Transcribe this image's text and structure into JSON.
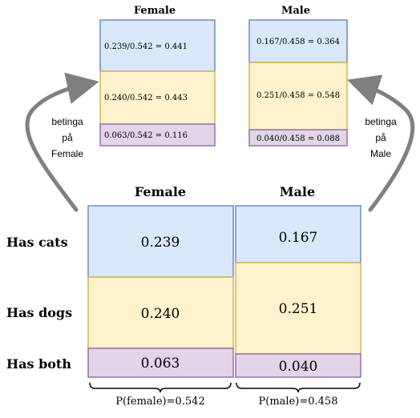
{
  "top": {
    "female": {
      "title": "Female",
      "cells": [
        {
          "label": "0.239/0.542 = 0.441",
          "category": "cats"
        },
        {
          "label": "0.240/0.542 = 0.443",
          "category": "dogs"
        },
        {
          "label": "0.063/0.542 = 0.116",
          "category": "both"
        }
      ]
    },
    "male": {
      "title": "Male",
      "cells": [
        {
          "label": "0.167/0.458 = 0.364",
          "category": "cats"
        },
        {
          "label": "0.251/0.458 = 0.548",
          "category": "dogs"
        },
        {
          "label": "0.040/0.458 = 0.088",
          "category": "both"
        }
      ]
    }
  },
  "arrows": {
    "left_text": [
      "betinga",
      "på",
      "Female"
    ],
    "right_text": [
      "betinga",
      "på",
      "Male"
    ]
  },
  "bottom": {
    "female": {
      "title": "Female",
      "probability_label": "P(female)=0.542",
      "cells": [
        {
          "value": "0.239",
          "category": "cats"
        },
        {
          "value": "0.240",
          "category": "dogs"
        },
        {
          "value": "0.063",
          "category": "both"
        }
      ]
    },
    "male": {
      "title": "Male",
      "probability_label": "P(male)=0.458",
      "cells": [
        {
          "value": "0.167",
          "category": "cats"
        },
        {
          "value": "0.251",
          "category": "dogs"
        },
        {
          "value": "0.040",
          "category": "both"
        }
      ]
    },
    "row_labels": [
      "Has cats",
      "Has dogs",
      "Has both"
    ]
  },
  "colors": {
    "cats_fill": "#dae8fc",
    "cats_stroke": "#6c8ebf",
    "dogs_fill": "#fff2cc",
    "dogs_stroke": "#d6b656",
    "both_fill": "#e1d5e7",
    "both_stroke": "#9673a6",
    "arrow": "#808080"
  }
}
